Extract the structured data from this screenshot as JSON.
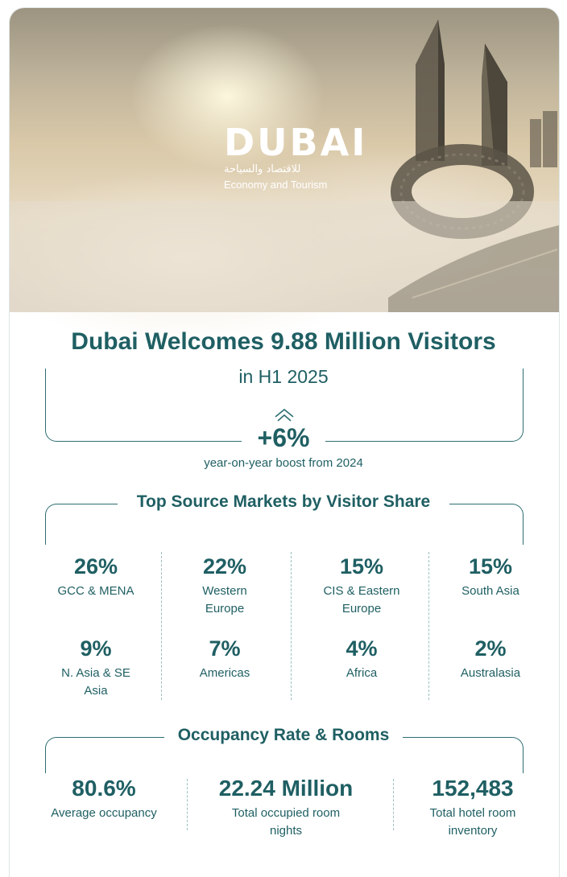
{
  "logo": {
    "wordmark": "DUBAI",
    "arabic": "للاقتصاد والسياحة",
    "tagline": "Economy and Tourism"
  },
  "headline": {
    "title": "Dubai Welcomes  9.88 Million Visitors",
    "subtitle": "in H1 2025",
    "growth": "+6%",
    "growth_caption": "year-on-year boost from 2024"
  },
  "markets": {
    "title": "Top Source Markets by Visitor Share",
    "items": [
      {
        "pct": "26%",
        "label": "GCC & MENA"
      },
      {
        "pct": "22%",
        "label": "Western Europe"
      },
      {
        "pct": "15%",
        "label": "CIS & Eastern Europe"
      },
      {
        "pct": "15%",
        "label": "South Asia"
      },
      {
        "pct": "9%",
        "label": "N. Asia & SE Asia"
      },
      {
        "pct": "7%",
        "label": "Americas"
      },
      {
        "pct": "4%",
        "label": "Africa"
      },
      {
        "pct": "2%",
        "label": "Australasia"
      }
    ]
  },
  "occupancy": {
    "title": "Occupancy Rate & Rooms",
    "stats": [
      {
        "value": "80.6%",
        "label": "Average occupancy"
      },
      {
        "value": "22.24 Million",
        "label": "Total occupied room nights"
      },
      {
        "value": "152,483",
        "label": "Total hotel room inventory"
      }
    ]
  },
  "colors": {
    "primary": "#1f5f63",
    "divider": "#9cc0c2"
  },
  "icons": {
    "growth": "double-chevron-up-icon"
  }
}
